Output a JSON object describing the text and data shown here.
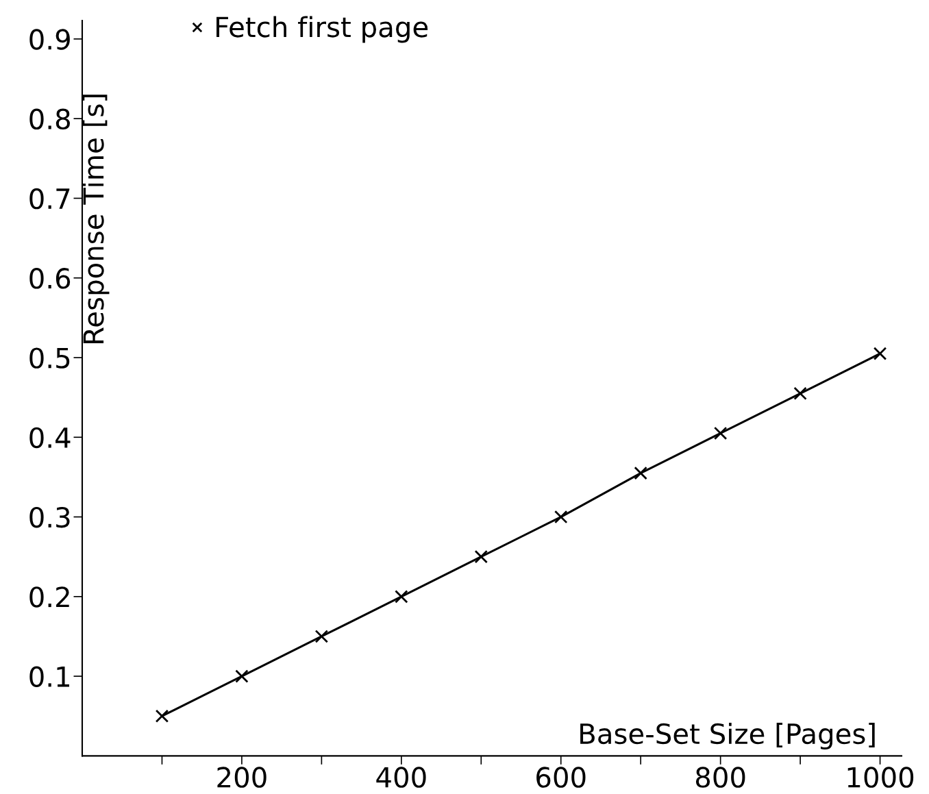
{
  "chart_data": {
    "type": "line",
    "xlabel": "Base-Set Size [Pages]",
    "ylabel": "Response Time [s]",
    "x": [
      100,
      200,
      300,
      400,
      500,
      600,
      700,
      800,
      900,
      1000
    ],
    "series": [
      {
        "name": "Fetch first page",
        "color": "#000000",
        "values": [
          0.05,
          0.1,
          0.15,
          0.2,
          0.25,
          0.3,
          0.355,
          0.405,
          0.455,
          0.505
        ]
      }
    ],
    "xlim": [
      0,
      1027
    ],
    "ylim": [
      0,
      0.923
    ],
    "xticks": [
      {
        "value": 100,
        "label": null
      },
      200,
      {
        "value": 300,
        "label": null
      },
      400,
      {
        "value": 500,
        "label": null
      },
      600,
      {
        "value": 700,
        "label": null
      },
      800,
      {
        "value": 900,
        "label": null
      },
      1000
    ],
    "yticks": [
      0.1,
      0.2,
      0.3,
      0.4,
      0.5,
      0.6,
      0.7,
      0.8,
      0.9
    ],
    "marker": "cross",
    "line_style": "solid",
    "grid": false,
    "legend": "top left"
  }
}
